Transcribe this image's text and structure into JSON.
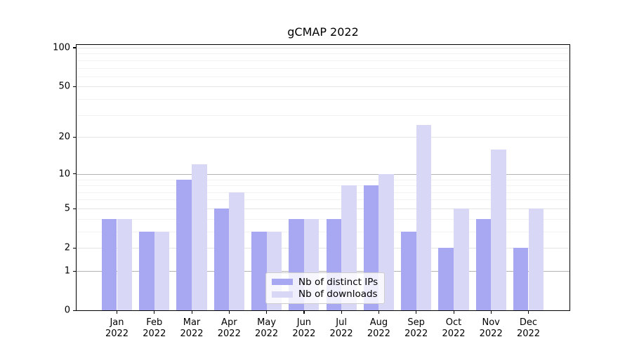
{
  "chart_data": {
    "type": "bar",
    "title": "gCMAP 2022",
    "categories": [
      "Jan 2022",
      "Feb 2022",
      "Mar 2022",
      "Apr 2022",
      "May 2022",
      "Jun 2022",
      "Jul 2022",
      "Aug 2022",
      "Sep 2022",
      "Oct 2022",
      "Nov 2022",
      "Dec 2022"
    ],
    "series": [
      {
        "name": "Nb of distinct IPs",
        "color": "#a8a8f2",
        "values": [
          4,
          3,
          9,
          5,
          3,
          4,
          4,
          8,
          3,
          2,
          4,
          2
        ]
      },
      {
        "name": "Nb of downloads",
        "color": "#d8d8f6",
        "values": [
          4,
          3,
          12,
          7,
          3,
          4,
          8,
          10,
          25,
          5,
          16,
          5
        ]
      }
    ],
    "xlabel": "",
    "ylabel": "",
    "yscale": "log1p",
    "ylim": [
      0,
      105
    ],
    "yticks": [
      0,
      1,
      2,
      5,
      10,
      20,
      50,
      100
    ],
    "yticks_minor": [
      3,
      4,
      6,
      7,
      8,
      9,
      30,
      40,
      60,
      70,
      80,
      90
    ],
    "emphasized_gridlines": [
      1,
      10
    ],
    "grid": true,
    "legend": {
      "position": "lower center"
    }
  }
}
